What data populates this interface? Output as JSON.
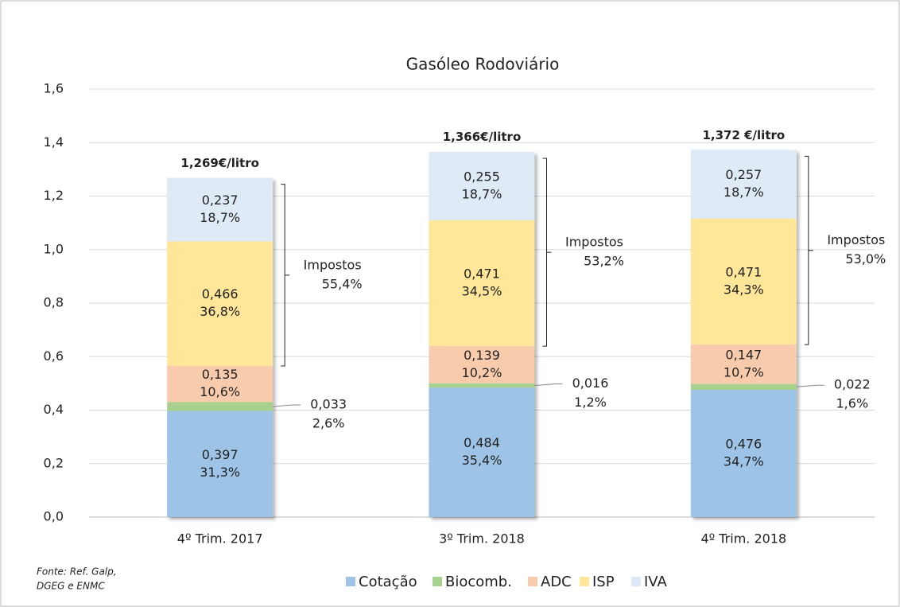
{
  "chart_data": {
    "type": "stacked_bar",
    "title": "Gasóleo Rodoviário",
    "categories": [
      "4º Trim. 2017",
      "3º Trim. 2018",
      "4º Trim. 2018"
    ],
    "ylim": [
      0,
      1.6
    ],
    "yticks": [
      {
        "value": 0,
        "label": "0,0"
      },
      {
        "value": 0.2,
        "label": "0,2"
      },
      {
        "value": 0.4,
        "label": "0,4"
      },
      {
        "value": 0.6,
        "label": "0,6"
      },
      {
        "value": 0.8,
        "label": "0,8"
      },
      {
        "value": 1.0,
        "label": "1,0"
      },
      {
        "value": 1.2,
        "label": "1,2"
      },
      {
        "value": 1.4,
        "label": "1,4"
      },
      {
        "value": 1.6,
        "label": "1,6"
      }
    ],
    "grid": true,
    "series": [
      {
        "name": "Cotação",
        "color": "#9dc3e6",
        "values": [
          0.397,
          0.484,
          0.476
        ],
        "value_labels": [
          "0,397",
          "0,484",
          "0,476"
        ],
        "shares": [
          31.3,
          35.4,
          34.7
        ],
        "share_labels": [
          "31,3%",
          "35,4%",
          "34,7%"
        ]
      },
      {
        "name": "Biocomb.",
        "color": "#a9d18e",
        "values": [
          0.033,
          0.016,
          0.022
        ],
        "value_labels": [
          "0,033",
          "0,016",
          "0,022"
        ],
        "shares": [
          2.6,
          1.2,
          1.6
        ],
        "share_labels": [
          "2,6%",
          "1,2%",
          "1,6%"
        ]
      },
      {
        "name": "ADC",
        "color": "#f8cbad",
        "values": [
          0.135,
          0.139,
          0.147
        ],
        "value_labels": [
          "0,135",
          "0,139",
          "0,147"
        ],
        "shares": [
          10.6,
          10.2,
          10.7
        ],
        "share_labels": [
          "10,6%",
          "10,2%",
          "10,7%"
        ]
      },
      {
        "name": "ISP",
        "color": "#ffe699",
        "values": [
          0.466,
          0.471,
          0.471
        ],
        "value_labels": [
          "0,466",
          "0,471",
          "0,471"
        ],
        "shares": [
          36.8,
          34.5,
          34.3
        ],
        "share_labels": [
          "36,8%",
          "34,5%",
          "34,3%"
        ]
      },
      {
        "name": "IVA",
        "color": "#deebf7",
        "values": [
          0.237,
          0.255,
          0.257
        ],
        "value_labels": [
          "0,237",
          "0,255",
          "0,257"
        ],
        "shares": [
          18.7,
          18.7,
          18.7
        ],
        "share_labels": [
          "18,7%",
          "18,7%",
          "18,7%"
        ]
      }
    ],
    "totals": {
      "values": [
        1.269,
        1.366,
        1.372
      ],
      "value_labels": [
        "1,269€/litro",
        "1,366€/litro",
        "1,372 €/litro"
      ]
    },
    "taxes": {
      "label": "Impostos",
      "values": [
        55.4,
        53.2,
        53.0
      ],
      "value_labels": [
        "55,4%",
        "53,2%",
        "53,0%"
      ]
    },
    "legend": "bottom",
    "source": [
      "Fonte: Ref. Galp,",
      "DGEG e ENMC"
    ]
  }
}
